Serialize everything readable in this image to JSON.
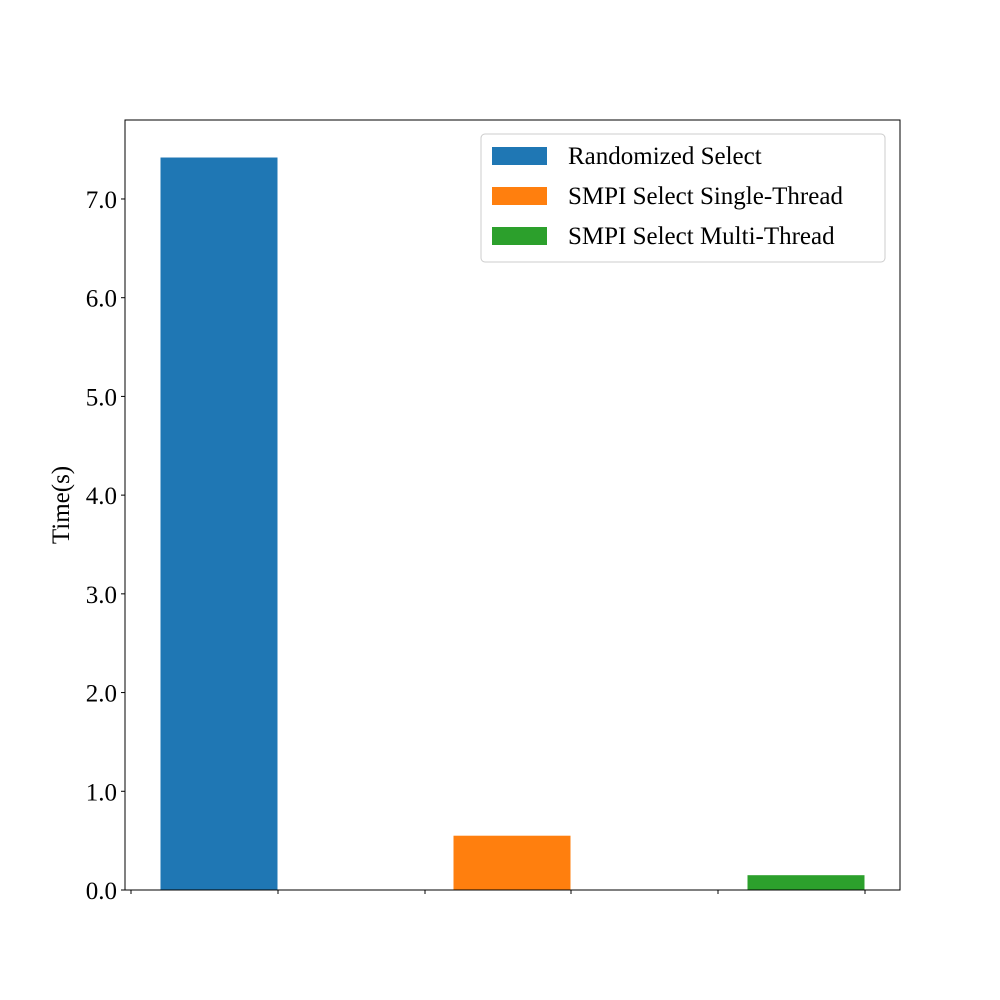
{
  "chart_data": {
    "type": "bar",
    "title": "",
    "xlabel": "",
    "ylabel": "Time(s)",
    "ylim": [
      0,
      7.8
    ],
    "yticks": [
      "0.0",
      "1.0",
      "2.0",
      "3.0",
      "4.0",
      "5.0",
      "6.0",
      "7.0"
    ],
    "ytick_values": [
      0,
      1,
      2,
      3,
      4,
      5,
      6,
      7
    ],
    "grid": false,
    "legend_position": "top-right",
    "series": [
      {
        "name": "Randomized Select",
        "value": 7.42,
        "color": "#1f77b4"
      },
      {
        "name": "SMPI Select Single-Thread",
        "value": 0.55,
        "color": "#ff7f0e"
      },
      {
        "name": "SMPI Select Multi-Thread",
        "value": 0.15,
        "color": "#2ca02c"
      }
    ]
  }
}
